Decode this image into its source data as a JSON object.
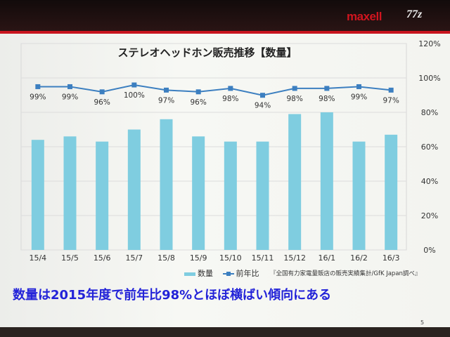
{
  "header": {
    "brand": "maxell",
    "brand_secondary": "77z"
  },
  "chart_data": {
    "type": "bar+line",
    "title": "ステレオヘッドホン販売推移【数量】",
    "categories": [
      "15/4",
      "15/5",
      "15/6",
      "15/7",
      "15/8",
      "15/9",
      "15/10",
      "15/11",
      "15/12",
      "16/1",
      "16/2",
      "16/3"
    ],
    "series": [
      {
        "name": "数量",
        "type": "bar",
        "axis": "primary (hidden)",
        "values": [
          64,
          66,
          63,
          70,
          76,
          66,
          63,
          63,
          79,
          80,
          63,
          67
        ],
        "color": "#7fcde0"
      },
      {
        "name": "前年比",
        "type": "line",
        "axis": "right",
        "values": [
          99,
          99,
          96,
          100,
          97,
          96,
          98,
          94,
          98,
          98,
          99,
          97
        ],
        "labels": [
          "99%",
          "99%",
          "96%",
          "100%",
          "97%",
          "96%",
          "98%",
          "94%",
          "98%",
          "98%",
          "99%",
          "97%"
        ],
        "color": "#3c7fc0"
      }
    ],
    "right_axis": {
      "ticks": [
        "0%",
        "20%",
        "40%",
        "60%",
        "80%",
        "100%",
        "120%"
      ],
      "range": [
        0,
        120
      ]
    },
    "grid": true,
    "legend": "bottom"
  },
  "legend": {
    "bar": "数量",
    "line": "前年比"
  },
  "source": "『全国有力家電量販店の販売実績集計/GfK Japan調べ』",
  "message": "数量は2015年度で前年比98%とほぼ横ばい傾向にある",
  "page_number": "5"
}
